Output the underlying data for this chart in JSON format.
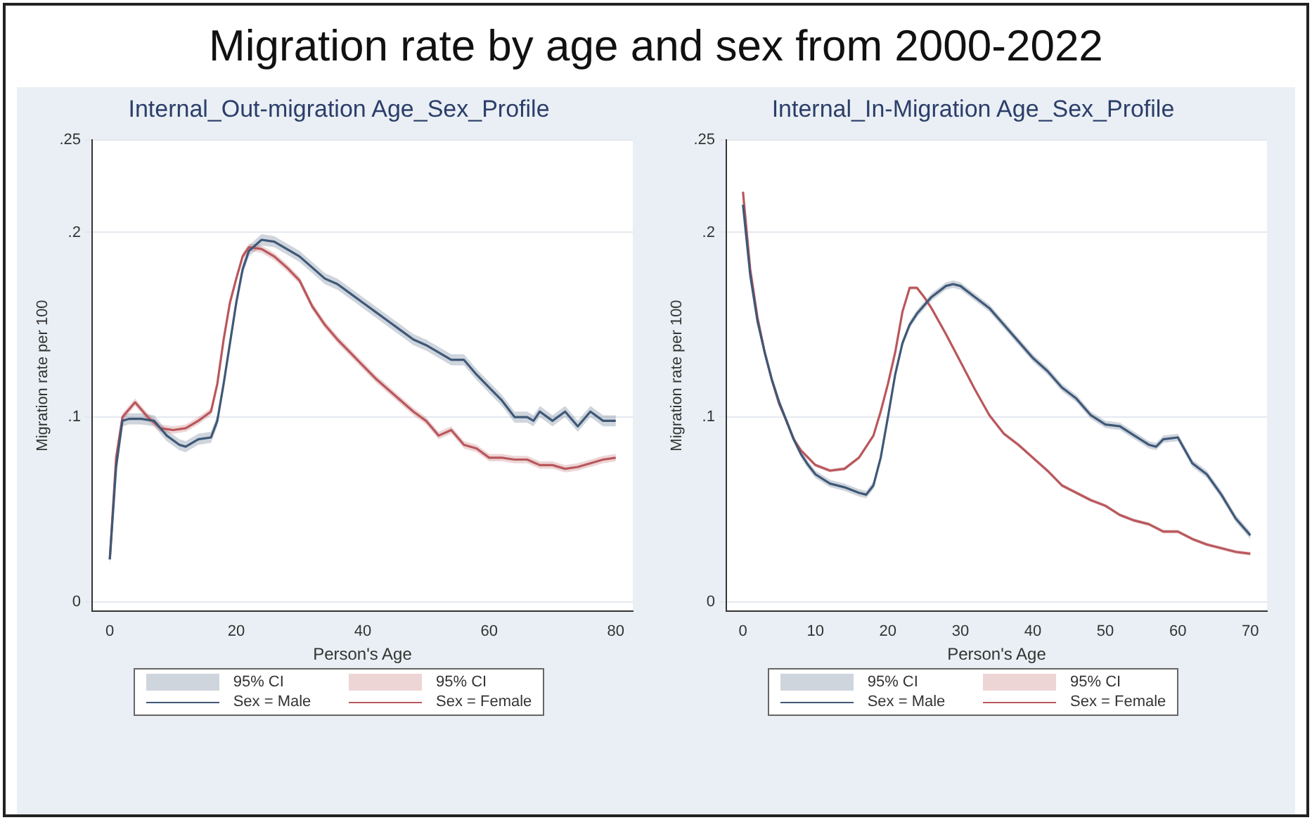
{
  "chart_data": [
    {
      "type": "line",
      "title": "Migration rate by age and sex from 2000-2022",
      "subtitle": "Internal_Out-migration Age_Sex_Profile",
      "xlabel": "Person's Age",
      "ylabel": "Migration rate per 100",
      "annotations": [
        "95% CI",
        "95% CI"
      ],
      "xlim": [
        -2.8,
        82.7
      ],
      "xticks": [
        0,
        20,
        40,
        60,
        80
      ],
      "ylim": [
        -0.005,
        0.25
      ],
      "yticks": [
        0,
        {
          "value": 0.1,
          "label": ".1"
        },
        {
          "value": 0.2,
          "label": ".2"
        },
        {
          "value": 0.25,
          "label": ".25"
        }
      ],
      "grid": "y",
      "legend": "bottom",
      "series": [
        {
          "name": "Sex = Male",
          "color": "#3f5877",
          "x": [
            0,
            1,
            2,
            3,
            5,
            7,
            9,
            11,
            12,
            14,
            16,
            17,
            18,
            19,
            20,
            21,
            22,
            24,
            26,
            28,
            30,
            32,
            34,
            36,
            38,
            40,
            42,
            44,
            46,
            48,
            50,
            52,
            54,
            56,
            58,
            60,
            62,
            64,
            66,
            67,
            68,
            70,
            72,
            74,
            76,
            78,
            80
          ],
          "values": [
            0.023,
            0.073,
            0.098,
            0.099,
            0.099,
            0.098,
            0.09,
            0.085,
            0.084,
            0.088,
            0.089,
            0.098,
            0.118,
            0.14,
            0.162,
            0.18,
            0.19,
            0.196,
            0.195,
            0.191,
            0.187,
            0.181,
            0.175,
            0.172,
            0.167,
            0.162,
            0.157,
            0.152,
            0.147,
            0.142,
            0.139,
            0.135,
            0.131,
            0.131,
            0.123,
            0.116,
            0.109,
            0.1,
            0.1,
            0.098,
            0.103,
            0.098,
            0.103,
            0.095,
            0.103,
            0.098,
            0.098
          ],
          "lower": [
            0.02,
            0.07,
            0.095,
            0.096,
            0.096,
            0.095,
            0.087,
            0.082,
            0.081,
            0.085,
            0.086,
            0.095,
            0.115,
            0.137,
            0.159,
            0.177,
            0.187,
            0.193,
            0.192,
            0.188,
            0.184,
            0.178,
            0.172,
            0.169,
            0.164,
            0.159,
            0.154,
            0.149,
            0.144,
            0.139,
            0.136,
            0.132,
            0.128,
            0.128,
            0.12,
            0.113,
            0.106,
            0.097,
            0.097,
            0.095,
            0.1,
            0.095,
            0.1,
            0.092,
            0.1,
            0.095,
            0.095
          ],
          "upper": [
            0.026,
            0.076,
            0.101,
            0.102,
            0.102,
            0.101,
            0.093,
            0.088,
            0.087,
            0.091,
            0.092,
            0.101,
            0.121,
            0.143,
            0.165,
            0.183,
            0.193,
            0.199,
            0.198,
            0.194,
            0.19,
            0.184,
            0.178,
            0.175,
            0.17,
            0.165,
            0.16,
            0.155,
            0.15,
            0.145,
            0.142,
            0.138,
            0.134,
            0.134,
            0.126,
            0.119,
            0.112,
            0.103,
            0.103,
            0.101,
            0.106,
            0.101,
            0.106,
            0.098,
            0.106,
            0.101,
            0.101
          ]
        },
        {
          "name": "Sex = Female",
          "color": "#b9575c",
          "x": [
            0,
            1,
            2,
            4,
            6,
            8,
            10,
            12,
            14,
            16,
            17,
            18,
            19,
            20,
            21,
            22,
            24,
            26,
            28,
            30,
            32,
            34,
            36,
            38,
            40,
            42,
            44,
            46,
            48,
            50,
            52,
            54,
            56,
            58,
            60,
            62,
            64,
            66,
            68,
            70,
            72,
            74,
            76,
            78,
            80
          ],
          "values": [
            0.023,
            0.078,
            0.1,
            0.108,
            0.1,
            0.094,
            0.093,
            0.094,
            0.098,
            0.103,
            0.118,
            0.142,
            0.162,
            0.175,
            0.187,
            0.192,
            0.191,
            0.187,
            0.181,
            0.174,
            0.16,
            0.15,
            0.142,
            0.135,
            0.128,
            0.121,
            0.115,
            0.109,
            0.103,
            0.098,
            0.09,
            0.093,
            0.085,
            0.083,
            0.078,
            0.078,
            0.077,
            0.077,
            0.074,
            0.074,
            0.072,
            0.073,
            0.075,
            0.077,
            0.078
          ],
          "lower": [
            0.021,
            0.076,
            0.098,
            0.106,
            0.098,
            0.092,
            0.091,
            0.092,
            0.096,
            0.101,
            0.116,
            0.14,
            0.16,
            0.173,
            0.185,
            0.19,
            0.189,
            0.185,
            0.179,
            0.172,
            0.158,
            0.148,
            0.14,
            0.133,
            0.126,
            0.119,
            0.113,
            0.107,
            0.101,
            0.096,
            0.088,
            0.091,
            0.083,
            0.081,
            0.076,
            0.076,
            0.075,
            0.075,
            0.072,
            0.072,
            0.07,
            0.071,
            0.073,
            0.075,
            0.076
          ],
          "upper": [
            0.025,
            0.08,
            0.102,
            0.11,
            0.102,
            0.096,
            0.095,
            0.096,
            0.1,
            0.105,
            0.12,
            0.144,
            0.164,
            0.177,
            0.189,
            0.194,
            0.193,
            0.189,
            0.183,
            0.176,
            0.162,
            0.152,
            0.144,
            0.137,
            0.13,
            0.123,
            0.117,
            0.111,
            0.105,
            0.1,
            0.092,
            0.095,
            0.087,
            0.085,
            0.08,
            0.08,
            0.079,
            0.079,
            0.076,
            0.076,
            0.074,
            0.075,
            0.077,
            0.079,
            0.08
          ]
        }
      ]
    },
    {
      "type": "line",
      "subtitle": "Internal_In-Migration Age_Sex_Profile",
      "xlabel": "Person's Age",
      "ylabel": "Migration rate per 100",
      "annotations": [
        "95% CI",
        "95% CI"
      ],
      "xlim": [
        -2.3,
        72.3
      ],
      "xticks": [
        0,
        10,
        20,
        30,
        40,
        50,
        60,
        70
      ],
      "ylim": [
        -0.005,
        0.25
      ],
      "yticks": [
        0,
        {
          "value": 0.1,
          "label": ".1"
        },
        {
          "value": 0.2,
          "label": ".2"
        },
        {
          "value": 0.25,
          "label": ".25"
        }
      ],
      "grid": "y",
      "legend": "bottom",
      "series": [
        {
          "name": "Sex = Male",
          "color": "#3f5877",
          "x": [
            0,
            1,
            2,
            3,
            4,
            5,
            6,
            7,
            8,
            9,
            10,
            12,
            14,
            16,
            17,
            18,
            19,
            20,
            21,
            22,
            23,
            24,
            26,
            28,
            29,
            30,
            32,
            34,
            36,
            38,
            40,
            42,
            44,
            46,
            48,
            50,
            52,
            54,
            56,
            57,
            58,
            60,
            62,
            64,
            66,
            68,
            70
          ],
          "values": [
            0.215,
            0.177,
            0.152,
            0.135,
            0.12,
            0.108,
            0.098,
            0.088,
            0.08,
            0.074,
            0.069,
            0.064,
            0.062,
            0.059,
            0.058,
            0.063,
            0.078,
            0.1,
            0.123,
            0.14,
            0.15,
            0.156,
            0.165,
            0.171,
            0.172,
            0.171,
            0.165,
            0.159,
            0.15,
            0.141,
            0.132,
            0.125,
            0.116,
            0.11,
            0.101,
            0.096,
            0.095,
            0.09,
            0.085,
            0.084,
            0.088,
            0.089,
            0.075,
            0.069,
            0.058,
            0.045,
            0.036
          ],
          "lower": [
            0.213,
            0.175,
            0.15,
            0.133,
            0.118,
            0.106,
            0.096,
            0.086,
            0.078,
            0.072,
            0.067,
            0.062,
            0.06,
            0.057,
            0.056,
            0.061,
            0.076,
            0.098,
            0.121,
            0.138,
            0.148,
            0.154,
            0.163,
            0.169,
            0.17,
            0.169,
            0.163,
            0.157,
            0.148,
            0.139,
            0.13,
            0.123,
            0.114,
            0.108,
            0.099,
            0.094,
            0.093,
            0.088,
            0.083,
            0.082,
            0.086,
            0.087,
            0.073,
            0.067,
            0.056,
            0.043,
            0.034
          ],
          "upper": [
            0.217,
            0.179,
            0.154,
            0.137,
            0.122,
            0.11,
            0.1,
            0.09,
            0.082,
            0.076,
            0.071,
            0.066,
            0.064,
            0.061,
            0.06,
            0.065,
            0.08,
            0.102,
            0.125,
            0.142,
            0.152,
            0.158,
            0.167,
            0.173,
            0.174,
            0.173,
            0.167,
            0.161,
            0.152,
            0.143,
            0.134,
            0.127,
            0.118,
            0.112,
            0.103,
            0.098,
            0.097,
            0.092,
            0.087,
            0.086,
            0.09,
            0.091,
            0.077,
            0.071,
            0.06,
            0.047,
            0.038
          ]
        },
        {
          "name": "Sex = Female",
          "color": "#b9575c",
          "x": [
            0,
            1,
            2,
            3,
            4,
            5,
            6,
            7,
            8,
            9,
            10,
            12,
            14,
            16,
            18,
            19,
            20,
            21,
            22,
            23,
            24,
            25,
            26,
            28,
            30,
            32,
            34,
            36,
            38,
            40,
            42,
            44,
            46,
            48,
            50,
            52,
            54,
            56,
            58,
            60,
            62,
            64,
            66,
            68,
            70
          ],
          "values": [
            0.222,
            0.18,
            0.154,
            0.135,
            0.12,
            0.107,
            0.098,
            0.088,
            0.082,
            0.078,
            0.074,
            0.071,
            0.072,
            0.078,
            0.09,
            0.103,
            0.118,
            0.135,
            0.157,
            0.17,
            0.17,
            0.165,
            0.159,
            0.145,
            0.13,
            0.115,
            0.101,
            0.091,
            0.085,
            0.078,
            0.071,
            0.063,
            0.059,
            0.055,
            0.052,
            0.047,
            0.044,
            0.042,
            0.038,
            0.038,
            0.034,
            0.031,
            0.029,
            0.027,
            0.026
          ],
          "lower": [
            0.221,
            0.179,
            0.153,
            0.134,
            0.119,
            0.106,
            0.097,
            0.087,
            0.081,
            0.077,
            0.073,
            0.07,
            0.071,
            0.077,
            0.089,
            0.102,
            0.117,
            0.134,
            0.156,
            0.169,
            0.169,
            0.164,
            0.158,
            0.144,
            0.129,
            0.114,
            0.1,
            0.09,
            0.084,
            0.077,
            0.07,
            0.062,
            0.058,
            0.054,
            0.051,
            0.046,
            0.043,
            0.041,
            0.037,
            0.037,
            0.033,
            0.03,
            0.028,
            0.026,
            0.025
          ],
          "upper": [
            0.223,
            0.181,
            0.155,
            0.136,
            0.121,
            0.108,
            0.099,
            0.089,
            0.083,
            0.079,
            0.075,
            0.072,
            0.073,
            0.079,
            0.091,
            0.104,
            0.119,
            0.136,
            0.158,
            0.171,
            0.171,
            0.166,
            0.16,
            0.146,
            0.131,
            0.116,
            0.102,
            0.092,
            0.086,
            0.079,
            0.072,
            0.064,
            0.06,
            0.056,
            0.053,
            0.048,
            0.045,
            0.043,
            0.039,
            0.039,
            0.035,
            0.032,
            0.03,
            0.028,
            0.027
          ]
        }
      ]
    }
  ]
}
